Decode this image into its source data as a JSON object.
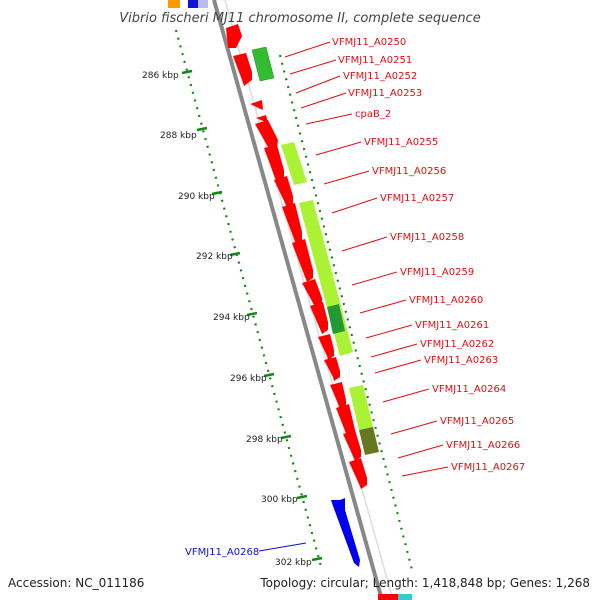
{
  "title": "Vibrio fischeri MJ11 chromosome II, complete sequence",
  "footer": {
    "accession": "Accession: NC_011186",
    "topology": "Topology: circular; Length: 1,418,848 bp; Genes: 1,268"
  },
  "ticks": [
    "286 kbp",
    "288 kbp",
    "290 kbp",
    "292 kbp",
    "294 kbp",
    "296 kbp",
    "298 kbp",
    "300 kbp",
    "302 kbp"
  ],
  "genes": [
    {
      "name": "VFMJ11_A0250",
      "color": "#dd1111"
    },
    {
      "name": "VFMJ11_A0251",
      "color": "#dd1111"
    },
    {
      "name": "VFMJ11_A0252",
      "color": "#dd1111"
    },
    {
      "name": "VFMJ11_A0253",
      "color": "#dd1111"
    },
    {
      "name": "cpaB_2",
      "color": "#dd1111"
    },
    {
      "name": "VFMJ11_A0255",
      "color": "#dd1111"
    },
    {
      "name": "VFMJ11_A0256",
      "color": "#dd1111"
    },
    {
      "name": "VFMJ11_A0257",
      "color": "#dd1111"
    },
    {
      "name": "VFMJ11_A0258",
      "color": "#dd1111"
    },
    {
      "name": "VFMJ11_A0259",
      "color": "#dd1111"
    },
    {
      "name": "VFMJ11_A0260",
      "color": "#dd1111"
    },
    {
      "name": "VFMJ11_A0261",
      "color": "#dd1111"
    },
    {
      "name": "VFMJ11_A0262",
      "color": "#dd1111"
    },
    {
      "name": "VFMJ11_A0263",
      "color": "#dd1111"
    },
    {
      "name": "VFMJ11_A0264",
      "color": "#dd1111"
    },
    {
      "name": "VFMJ11_A0265",
      "color": "#dd1111"
    },
    {
      "name": "VFMJ11_A0266",
      "color": "#dd1111"
    },
    {
      "name": "VFMJ11_A0267",
      "color": "#dd1111"
    },
    {
      "name": "VFMJ11_A0268",
      "color": "#1111cc"
    }
  ],
  "colors": {
    "forward_gene": "#ff0000",
    "reverse_gene": "#0000ff",
    "feature_light": "#aaf233",
    "feature_mid": "#33bb33",
    "feature_dark": "#667722",
    "backbone": "#888888",
    "tick": "#118811",
    "label_forward": "#dd1111",
    "label_reverse": "#1111cc"
  }
}
